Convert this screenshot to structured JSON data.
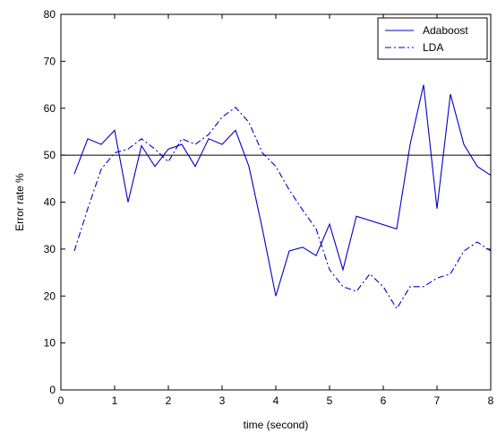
{
  "chart_data": {
    "type": "line",
    "xlabel": "time (second)",
    "ylabel": "Error rate %",
    "xlim": [
      0,
      8
    ],
    "ylim": [
      0,
      80
    ],
    "xticks": [
      0,
      1,
      2,
      3,
      4,
      5,
      6,
      7,
      8
    ],
    "yticks": [
      0,
      10,
      20,
      30,
      40,
      50,
      60,
      70,
      80
    ],
    "grid": false,
    "legend_position": "top-right",
    "reference_line": {
      "y": 50,
      "color": "#000000"
    },
    "series": [
      {
        "name": "Adaboost",
        "style": "solid",
        "color": "#0000cc",
        "x": [
          0.25,
          0.5,
          0.75,
          1.0,
          1.25,
          1.5,
          1.75,
          2.0,
          2.25,
          2.5,
          2.75,
          3.0,
          3.25,
          3.5,
          3.75,
          4.0,
          4.25,
          4.5,
          4.75,
          5.0,
          5.25,
          5.5,
          6.25,
          6.5,
          6.75,
          7.0,
          7.25,
          7.5,
          7.75,
          8.0
        ],
        "y": [
          46,
          53.5,
          52.3,
          55.3,
          40,
          52,
          47.6,
          51.3,
          52.3,
          47.6,
          53.5,
          52.3,
          55.3,
          47.6,
          34.3,
          20,
          29.6,
          30.4,
          28.6,
          35.3,
          25.6,
          37,
          34.3,
          52.3,
          65,
          38.6,
          63,
          52.3,
          47.6,
          45.7
        ]
      },
      {
        "name": "LDA",
        "style": "dashdot",
        "color": "#0000cc",
        "x": [
          0.25,
          0.5,
          0.75,
          1.0,
          1.25,
          1.5,
          1.75,
          2.0,
          2.25,
          2.5,
          2.75,
          3.0,
          3.25,
          3.5,
          3.75,
          4.0,
          4.25,
          4.5,
          4.75,
          5.0,
          5.25,
          5.5,
          5.75,
          6.0,
          6.25,
          6.5,
          6.75,
          7.0,
          7.25,
          7.5,
          7.75,
          8.0
        ],
        "y": [
          29.6,
          38.6,
          47,
          50.5,
          51.3,
          53.5,
          51.3,
          48.6,
          53.5,
          52.3,
          54.4,
          58.1,
          60.2,
          57,
          50.5,
          47.6,
          42.6,
          38.3,
          34.3,
          25.6,
          22,
          21,
          24.7,
          22,
          17.3,
          22,
          22,
          23.8,
          24.7,
          29.6,
          31.5,
          29.6
        ]
      }
    ]
  }
}
